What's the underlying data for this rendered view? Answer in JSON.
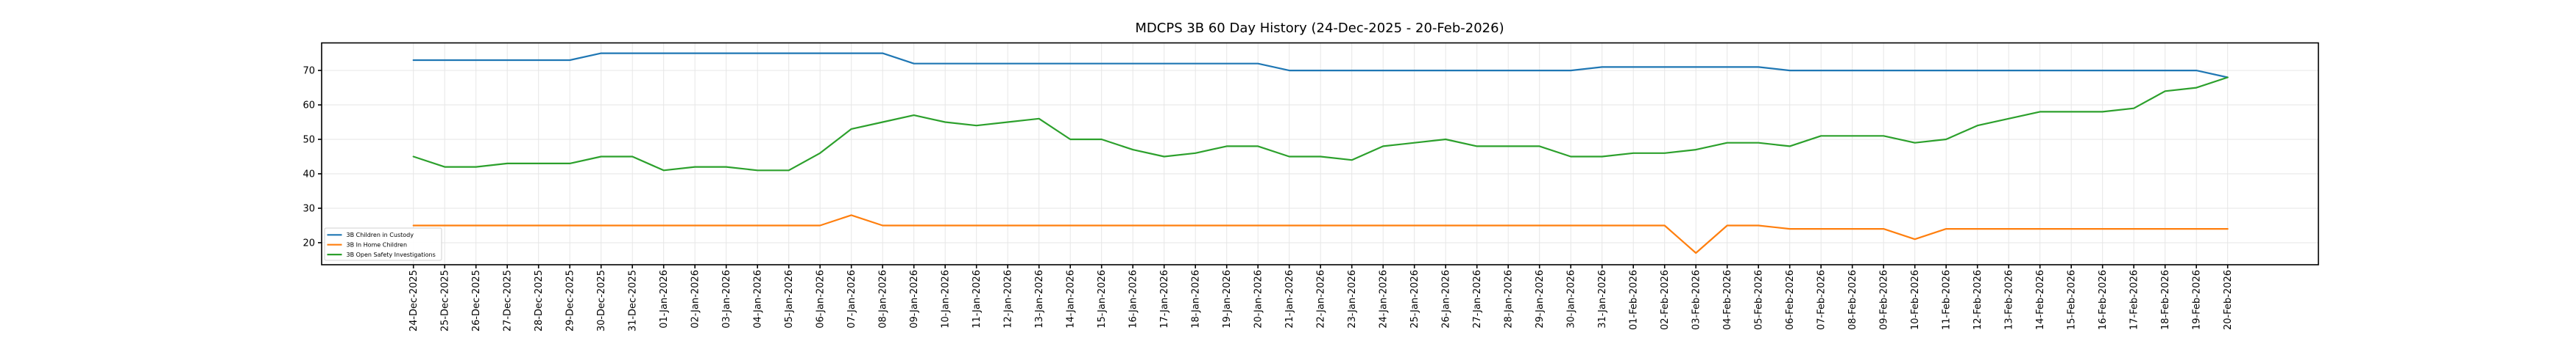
{
  "chart_data": {
    "type": "line",
    "title": "MDCPS 3B 60 Day History (24-Dec-2025 - 20-Feb-2026)",
    "xlabel": "",
    "ylabel": "",
    "grid": true,
    "legend_position": "lower-left",
    "background_color": "#ffffff",
    "grid_color": "#e6e6e6",
    "axis_color": "#000000",
    "ylim": [
      13.6,
      78.0
    ],
    "yticks": [
      20,
      30,
      40,
      50,
      60,
      70
    ],
    "x_tick_labels": [
      "24-Dec-2025",
      "25-Dec-2025",
      "26-Dec-2025",
      "27-Dec-2025",
      "28-Dec-2025",
      "29-Dec-2025",
      "30-Dec-2025",
      "31-Dec-2025",
      "01-Jan-2026",
      "02-Jan-2026",
      "03-Jan-2026",
      "04-Jan-2026",
      "05-Jan-2026",
      "06-Jan-2026",
      "07-Jan-2026",
      "08-Jan-2026",
      "09-Jan-2026",
      "10-Jan-2026",
      "11-Jan-2026",
      "12-Jan-2026",
      "13-Jan-2026",
      "14-Jan-2026",
      "15-Jan-2026",
      "16-Jan-2026",
      "17-Jan-2026",
      "18-Jan-2026",
      "19-Jan-2026",
      "20-Jan-2026",
      "21-Jan-2026",
      "22-Jan-2026",
      "23-Jan-2026",
      "24-Jan-2026",
      "25-Jan-2026",
      "26-Jan-2026",
      "27-Jan-2026",
      "28-Jan-2026",
      "29-Jan-2026",
      "30-Jan-2026",
      "31-Jan-2026",
      "01-Feb-2026",
      "02-Feb-2026",
      "03-Feb-2026",
      "04-Feb-2026",
      "05-Feb-2026",
      "06-Feb-2026",
      "07-Feb-2026",
      "08-Feb-2026",
      "09-Feb-2026",
      "10-Feb-2026",
      "11-Feb-2026",
      "12-Feb-2026",
      "13-Feb-2026",
      "14-Feb-2026",
      "15-Feb-2026",
      "16-Feb-2026",
      "17-Feb-2026",
      "18-Feb-2026",
      "19-Feb-2026",
      "20-Feb-2026"
    ],
    "series": [
      {
        "name": "3B Children in Custody",
        "color": "#1f77b4",
        "values": [
          73,
          73,
          73,
          73,
          73,
          73,
          75,
          75,
          75,
          75,
          75,
          75,
          75,
          75,
          75,
          75,
          72,
          72,
          72,
          72,
          72,
          72,
          72,
          72,
          72,
          72,
          72,
          72,
          70,
          70,
          70,
          70,
          70,
          70,
          70,
          70,
          70,
          70,
          71,
          71,
          71,
          71,
          71,
          71,
          70,
          70,
          70,
          70,
          70,
          70,
          70,
          70,
          70,
          70,
          70,
          70,
          70,
          70,
          68
        ]
      },
      {
        "name": "3B In Home Children",
        "color": "#ff7f0e",
        "values": [
          25,
          25,
          25,
          25,
          25,
          25,
          25,
          25,
          25,
          25,
          25,
          25,
          25,
          25,
          28,
          25,
          25,
          25,
          25,
          25,
          25,
          25,
          25,
          25,
          25,
          25,
          25,
          25,
          25,
          25,
          25,
          25,
          25,
          25,
          25,
          25,
          25,
          25,
          25,
          25,
          25,
          17,
          25,
          25,
          24,
          24,
          24,
          24,
          21,
          24,
          24,
          24,
          24,
          24,
          24,
          24,
          24,
          24,
          24
        ]
      },
      {
        "name": "3B Open Safety Investigations",
        "color": "#2ca02c",
        "values": [
          45,
          42,
          42,
          43,
          43,
          43,
          45,
          45,
          41,
          42,
          42,
          41,
          41,
          46,
          53,
          55,
          57,
          55,
          54,
          55,
          56,
          50,
          50,
          47,
          45,
          46,
          48,
          48,
          45,
          45,
          44,
          48,
          49,
          50,
          48,
          48,
          48,
          45,
          45,
          46,
          46,
          47,
          49,
          49,
          48,
          51,
          51,
          51,
          49,
          50,
          54,
          56,
          58,
          58,
          58,
          59,
          64,
          65,
          68
        ]
      }
    ]
  }
}
